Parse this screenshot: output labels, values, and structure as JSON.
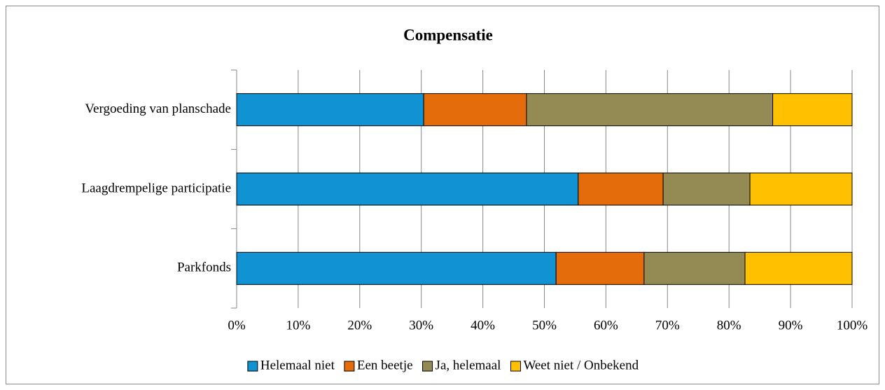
{
  "chart_data": {
    "type": "stacked_barh",
    "title": "Compensatie",
    "categories": [
      "Vergoeding van planschade",
      "Laagdrempelige participatie",
      "Parkfonds"
    ],
    "series": [
      {
        "name": "Helemaal niet",
        "color": "#1192d2",
        "values": [
          30.4,
          55.5,
          51.9
        ]
      },
      {
        "name": "Een beetje",
        "color": "#e46c0a",
        "values": [
          16.7,
          13.8,
          14.3
        ]
      },
      {
        "name": "Ja, helemaal",
        "color": "#948a54",
        "values": [
          40.0,
          14.1,
          16.4
        ]
      },
      {
        "name": "Weet niet / Onbekend",
        "color": "#ffc000",
        "values": [
          12.9,
          16.6,
          17.4
        ]
      }
    ],
    "xlim": [
      0,
      100
    ],
    "xticks": [
      {
        "value": 0,
        "label": "0%"
      },
      {
        "value": 10,
        "label": "10%"
      },
      {
        "value": 20,
        "label": "20%"
      },
      {
        "value": 30,
        "label": "30%"
      },
      {
        "value": 40,
        "label": "40%"
      },
      {
        "value": 50,
        "label": "50%"
      },
      {
        "value": 60,
        "label": "60%"
      },
      {
        "value": 70,
        "label": "70%"
      },
      {
        "value": 80,
        "label": "80%"
      },
      {
        "value": 90,
        "label": "90%"
      },
      {
        "value": 100,
        "label": "100%"
      }
    ],
    "grid": true,
    "legend": "bottom"
  }
}
